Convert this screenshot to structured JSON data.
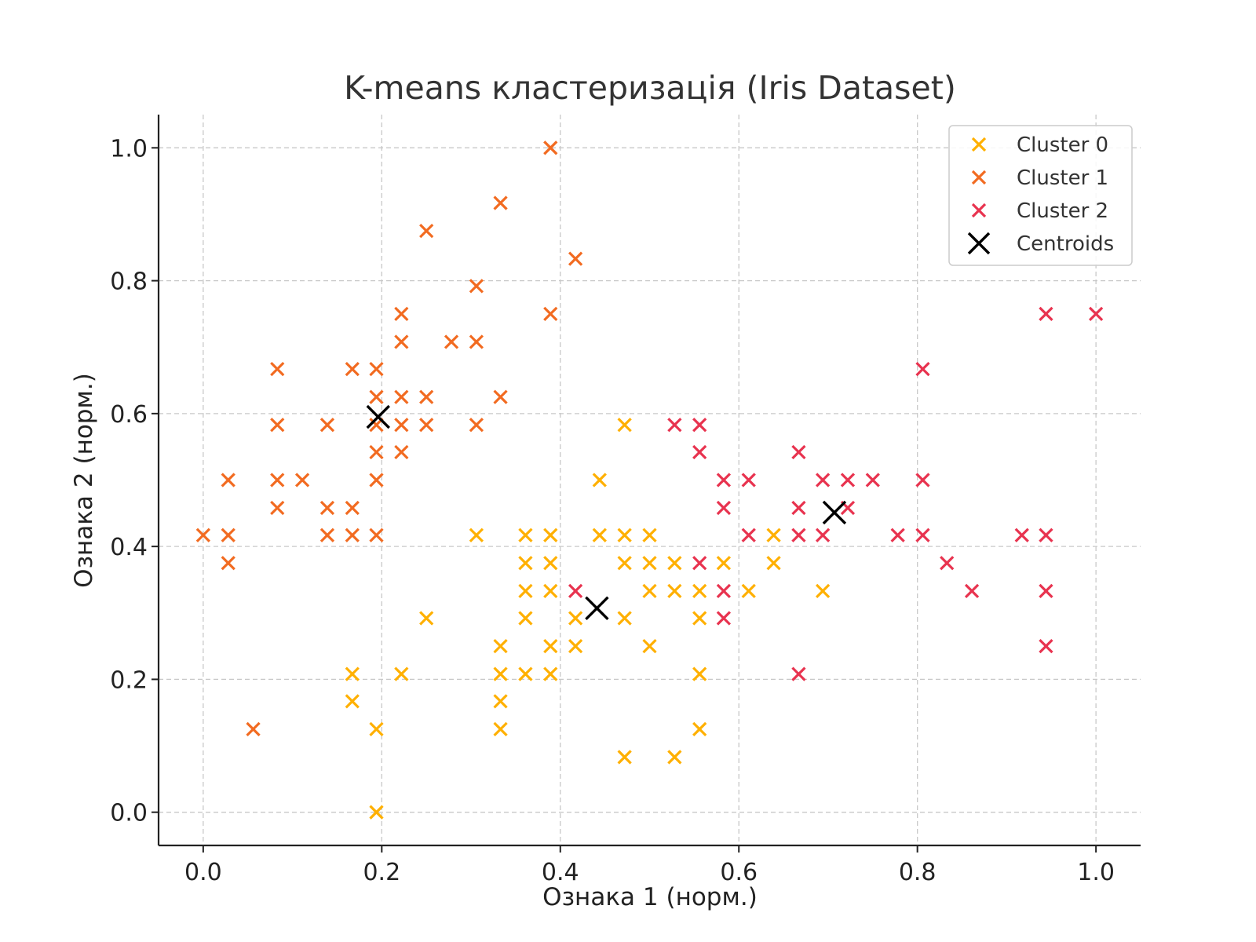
{
  "chart_data": {
    "type": "scatter",
    "title": "K-means кластеризація (Iris Dataset)",
    "xlabel": "Ознака 1 (норм.)",
    "ylabel": "Ознака 2 (норм.)",
    "xlim": [
      -0.05,
      1.05
    ],
    "ylim": [
      -0.05,
      1.05
    ],
    "xticks": [
      "0.0",
      "0.2",
      "0.4",
      "0.6",
      "0.8",
      "1.0"
    ],
    "yticks": [
      "0.0",
      "0.2",
      "0.4",
      "0.6",
      "0.8",
      "1.0"
    ],
    "grid": true,
    "legend_position": "top-right",
    "series": [
      {
        "name": "Cluster 0",
        "color": "#FFB000",
        "marker": "x",
        "points": [
          [
            0.472,
            0.583
          ],
          [
            0.444,
            0.5
          ],
          [
            0.306,
            0.417
          ],
          [
            0.361,
            0.417
          ],
          [
            0.389,
            0.417
          ],
          [
            0.444,
            0.417
          ],
          [
            0.472,
            0.417
          ],
          [
            0.5,
            0.417
          ],
          [
            0.639,
            0.417
          ],
          [
            0.361,
            0.375
          ],
          [
            0.389,
            0.375
          ],
          [
            0.472,
            0.375
          ],
          [
            0.5,
            0.375
          ],
          [
            0.528,
            0.375
          ],
          [
            0.583,
            0.375
          ],
          [
            0.639,
            0.375
          ],
          [
            0.361,
            0.333
          ],
          [
            0.389,
            0.333
          ],
          [
            0.5,
            0.333
          ],
          [
            0.528,
            0.333
          ],
          [
            0.556,
            0.333
          ],
          [
            0.611,
            0.333
          ],
          [
            0.694,
            0.333
          ],
          [
            0.25,
            0.292
          ],
          [
            0.361,
            0.292
          ],
          [
            0.417,
            0.292
          ],
          [
            0.472,
            0.292
          ],
          [
            0.556,
            0.292
          ],
          [
            0.333,
            0.25
          ],
          [
            0.389,
            0.25
          ],
          [
            0.417,
            0.25
          ],
          [
            0.5,
            0.25
          ],
          [
            0.167,
            0.208
          ],
          [
            0.222,
            0.208
          ],
          [
            0.333,
            0.208
          ],
          [
            0.361,
            0.208
          ],
          [
            0.389,
            0.208
          ],
          [
            0.556,
            0.208
          ],
          [
            0.167,
            0.167
          ],
          [
            0.333,
            0.167
          ],
          [
            0.194,
            0.125
          ],
          [
            0.333,
            0.125
          ],
          [
            0.556,
            0.125
          ],
          [
            0.472,
            0.083
          ],
          [
            0.528,
            0.083
          ],
          [
            0.194,
            0.0
          ]
        ]
      },
      {
        "name": "Cluster 1",
        "color": "#F26B21",
        "marker": "x",
        "points": [
          [
            0.389,
            1.0
          ],
          [
            0.333,
            0.917
          ],
          [
            0.25,
            0.875
          ],
          [
            0.417,
            0.833
          ],
          [
            0.306,
            0.792
          ],
          [
            0.222,
            0.75
          ],
          [
            0.389,
            0.75
          ],
          [
            0.222,
            0.708
          ],
          [
            0.278,
            0.708
          ],
          [
            0.306,
            0.708
          ],
          [
            0.083,
            0.667
          ],
          [
            0.167,
            0.667
          ],
          [
            0.194,
            0.667
          ],
          [
            0.194,
            0.625
          ],
          [
            0.222,
            0.625
          ],
          [
            0.25,
            0.625
          ],
          [
            0.333,
            0.625
          ],
          [
            0.083,
            0.583
          ],
          [
            0.139,
            0.583
          ],
          [
            0.194,
            0.583
          ],
          [
            0.222,
            0.583
          ],
          [
            0.25,
            0.583
          ],
          [
            0.306,
            0.583
          ],
          [
            0.194,
            0.542
          ],
          [
            0.222,
            0.542
          ],
          [
            0.028,
            0.5
          ],
          [
            0.083,
            0.5
          ],
          [
            0.111,
            0.5
          ],
          [
            0.194,
            0.5
          ],
          [
            0.083,
            0.458
          ],
          [
            0.139,
            0.458
          ],
          [
            0.167,
            0.458
          ],
          [
            0.0,
            0.417
          ],
          [
            0.028,
            0.417
          ],
          [
            0.139,
            0.417
          ],
          [
            0.167,
            0.417
          ],
          [
            0.194,
            0.417
          ],
          [
            0.028,
            0.375
          ],
          [
            0.056,
            0.125
          ]
        ]
      },
      {
        "name": "Cluster 2",
        "color": "#E8334F",
        "marker": "x",
        "points": [
          [
            0.944,
            0.75
          ],
          [
            1.0,
            0.75
          ],
          [
            0.806,
            0.667
          ],
          [
            0.528,
            0.583
          ],
          [
            0.556,
            0.583
          ],
          [
            0.556,
            0.542
          ],
          [
            0.667,
            0.542
          ],
          [
            0.583,
            0.5
          ],
          [
            0.611,
            0.5
          ],
          [
            0.694,
            0.5
          ],
          [
            0.722,
            0.5
          ],
          [
            0.75,
            0.5
          ],
          [
            0.806,
            0.5
          ],
          [
            0.583,
            0.458
          ],
          [
            0.667,
            0.458
          ],
          [
            0.722,
            0.458
          ],
          [
            0.611,
            0.417
          ],
          [
            0.667,
            0.417
          ],
          [
            0.694,
            0.417
          ],
          [
            0.778,
            0.417
          ],
          [
            0.806,
            0.417
          ],
          [
            0.917,
            0.417
          ],
          [
            0.944,
            0.417
          ],
          [
            0.556,
            0.375
          ],
          [
            0.833,
            0.375
          ],
          [
            0.417,
            0.333
          ],
          [
            0.583,
            0.333
          ],
          [
            0.861,
            0.333
          ],
          [
            0.944,
            0.333
          ],
          [
            0.583,
            0.292
          ],
          [
            0.944,
            0.25
          ],
          [
            0.667,
            0.208
          ]
        ]
      }
    ],
    "centroids": {
      "name": "Centroids",
      "color": "#000000",
      "marker": "x",
      "points": [
        [
          0.196,
          0.595
        ],
        [
          0.441,
          0.307
        ],
        [
          0.707,
          0.451
        ]
      ]
    }
  }
}
